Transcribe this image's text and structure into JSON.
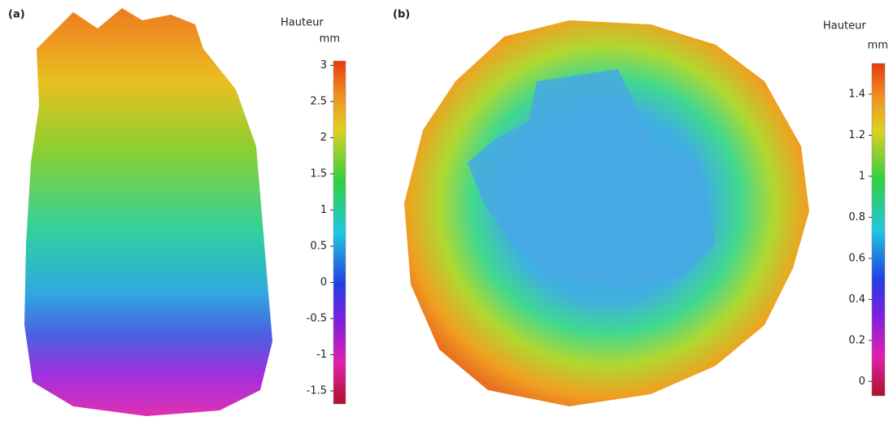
{
  "panels": [
    {
      "label": "(a)",
      "colorbar": {
        "title": "Hauteur",
        "unit": "mm",
        "lim": [
          -1.68,
          3.06
        ],
        "ticks": [
          3,
          2.5,
          2,
          1.5,
          1,
          0.5,
          0,
          -0.5,
          -1,
          -1.5
        ]
      }
    },
    {
      "label": "(b)",
      "colorbar": {
        "title": "Hauteur",
        "unit": "mm",
        "lim": [
          -0.07,
          1.55
        ],
        "ticks": [
          1.4,
          1.2,
          1,
          0.8,
          0.6,
          0.4,
          0.2,
          0
        ]
      }
    }
  ]
}
